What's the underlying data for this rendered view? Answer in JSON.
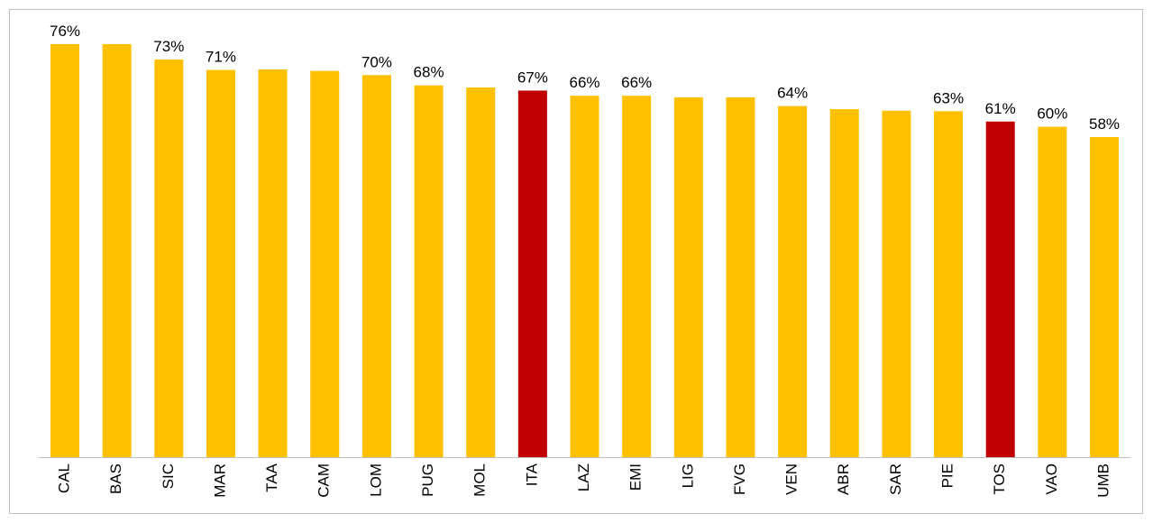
{
  "chart_data": {
    "type": "bar",
    "categories": [
      "CAL",
      "BAS",
      "SIC",
      "MAR",
      "TAA",
      "CAM",
      "LOM",
      "PUG",
      "MOL",
      "ITA",
      "LAZ",
      "EMI",
      "LIG",
      "FVG",
      "VEN",
      "ABR",
      "SAR",
      "PIE",
      "TOS",
      "VAO",
      "UMB"
    ],
    "values": [
      76,
      76,
      73,
      71,
      71.1,
      70.8,
      70,
      68,
      67.6,
      67,
      66,
      66,
      65.7,
      65.7,
      64,
      63.4,
      63.1,
      63,
      61,
      60,
      58
    ],
    "value_labels": [
      "76%",
      null,
      "73%",
      "71%",
      null,
      null,
      "70%",
      "68%",
      null,
      "67%",
      "66%",
      "66%",
      null,
      null,
      "64%",
      null,
      null,
      "63%",
      "61%",
      "60%",
      "58%"
    ],
    "colors": [
      "#FFC000",
      "#FFC000",
      "#FFC000",
      "#FFC000",
      "#FFC000",
      "#FFC000",
      "#FFC000",
      "#FFC000",
      "#FFC000",
      "#C00000",
      "#FFC000",
      "#FFC000",
      "#FFC000",
      "#FFC000",
      "#FFC000",
      "#FFC000",
      "#FFC000",
      "#FFC000",
      "#C00000",
      "#FFC000",
      "#FFC000"
    ],
    "ylim": [
      -4,
      81.4
    ]
  }
}
